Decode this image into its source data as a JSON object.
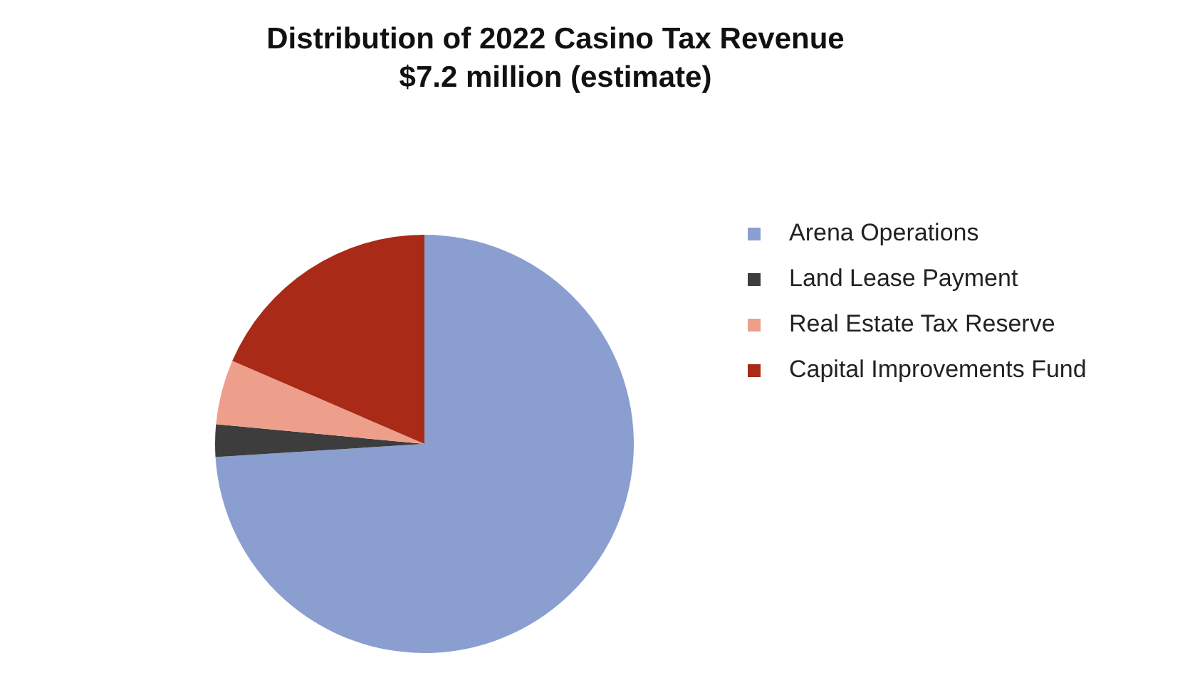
{
  "chart_data": {
    "type": "pie",
    "title": "Distribution of 2022 Casino Tax Revenue\n$7.2 million (estimate)",
    "categories": [
      "Arena Operations",
      "Land Lease Payment",
      "Real Estate Tax Reserve",
      "Capital Improvements Fund"
    ],
    "values": [
      74,
      2.5,
      5,
      18.5
    ],
    "colors": [
      "#8a9fd0",
      "#3d3d3d",
      "#ee9f8c",
      "#a82a17"
    ],
    "legend": "right"
  }
}
